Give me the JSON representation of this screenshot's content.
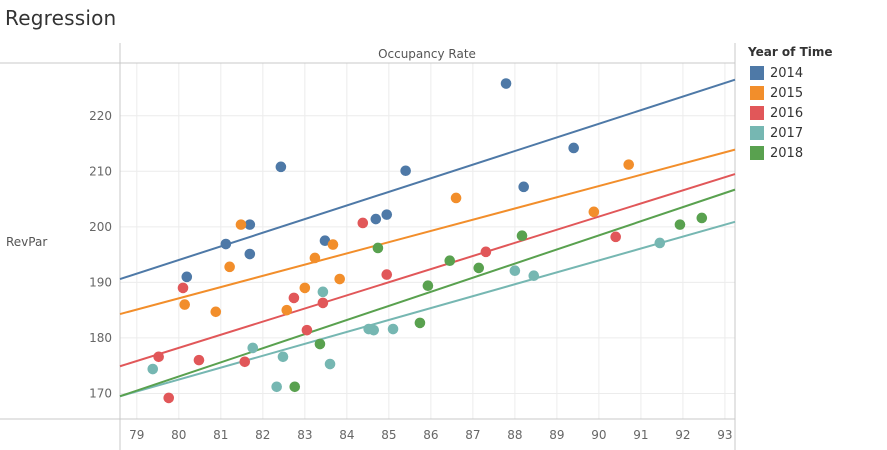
{
  "page": {
    "title": "Regression"
  },
  "chart_data": {
    "type": "scatter",
    "title": "Regression",
    "xlabel": "Occupancy Rate",
    "ylabel": "RevPar",
    "xlim": [
      78.6,
      93.24
    ],
    "ylim": [
      165.4,
      229.5
    ],
    "xticks": [
      79,
      80,
      81,
      82,
      83,
      84,
      85,
      86,
      87,
      88,
      89,
      90,
      91,
      92,
      93
    ],
    "yticks": [
      170,
      180,
      190,
      200,
      210,
      220
    ],
    "grid": true,
    "legend": {
      "title": "Year of Time",
      "placement": "right"
    },
    "series": [
      {
        "name": "2014",
        "color": "#4e79a7",
        "points": [
          [
            82.43,
            210.8
          ],
          [
            81.69,
            200.4
          ],
          [
            81.12,
            196.9
          ],
          [
            81.69,
            195.1
          ],
          [
            80.19,
            191.0
          ],
          [
            83.48,
            197.5
          ],
          [
            84.69,
            201.4
          ],
          [
            84.95,
            202.2
          ],
          [
            87.79,
            225.8
          ],
          [
            89.4,
            214.2
          ],
          [
            88.21,
            207.2
          ],
          [
            85.4,
            210.1
          ]
        ],
        "trend": [
          [
            78.6,
            190.6
          ],
          [
            93.24,
            226.5
          ]
        ]
      },
      {
        "name": "2015",
        "color": "#f28e2b",
        "points": [
          [
            81.48,
            200.4
          ],
          [
            81.21,
            192.8
          ],
          [
            80.14,
            186.0
          ],
          [
            80.88,
            184.7
          ],
          [
            83.0,
            189.0
          ],
          [
            83.24,
            194.4
          ],
          [
            83.67,
            196.8
          ],
          [
            83.83,
            190.6
          ],
          [
            82.57,
            185.0
          ],
          [
            86.6,
            205.2
          ],
          [
            89.88,
            202.7
          ],
          [
            90.71,
            211.2
          ]
        ],
        "trend": [
          [
            78.6,
            184.3
          ],
          [
            93.24,
            213.9
          ]
        ]
      },
      {
        "name": "2016",
        "color": "#e15759",
        "points": [
          [
            80.1,
            189.0
          ],
          [
            82.74,
            187.2
          ],
          [
            83.43,
            186.3
          ],
          [
            79.52,
            176.6
          ],
          [
            80.48,
            176.0
          ],
          [
            81.57,
            175.7
          ],
          [
            83.05,
            181.4
          ],
          [
            79.76,
            169.2
          ],
          [
            84.38,
            200.7
          ],
          [
            84.95,
            191.4
          ],
          [
            87.31,
            195.5
          ],
          [
            90.4,
            198.2
          ]
        ],
        "trend": [
          [
            78.6,
            174.9
          ],
          [
            93.24,
            209.5
          ]
        ]
      },
      {
        "name": "2017",
        "color": "#76b7b2",
        "points": [
          [
            79.38,
            174.4
          ],
          [
            81.76,
            178.2
          ],
          [
            82.48,
            176.6
          ],
          [
            82.33,
            171.2
          ],
          [
            83.43,
            188.3
          ],
          [
            83.6,
            175.3
          ],
          [
            84.52,
            181.6
          ],
          [
            84.64,
            181.4
          ],
          [
            85.1,
            181.6
          ],
          [
            88.0,
            192.1
          ],
          [
            88.45,
            191.2
          ],
          [
            91.45,
            197.1
          ]
        ],
        "trend": [
          [
            78.6,
            169.5
          ],
          [
            93.24,
            200.9
          ]
        ]
      },
      {
        "name": "2018",
        "color": "#59a14f",
        "points": [
          [
            82.76,
            171.2
          ],
          [
            83.36,
            178.9
          ],
          [
            84.74,
            196.2
          ],
          [
            85.74,
            182.7
          ],
          [
            85.93,
            189.4
          ],
          [
            86.45,
            193.9
          ],
          [
            87.14,
            192.6
          ],
          [
            88.17,
            198.4
          ],
          [
            91.93,
            200.4
          ],
          [
            92.45,
            201.6
          ]
        ],
        "trend": [
          [
            78.6,
            169.5
          ],
          [
            93.24,
            206.7
          ]
        ]
      }
    ]
  }
}
